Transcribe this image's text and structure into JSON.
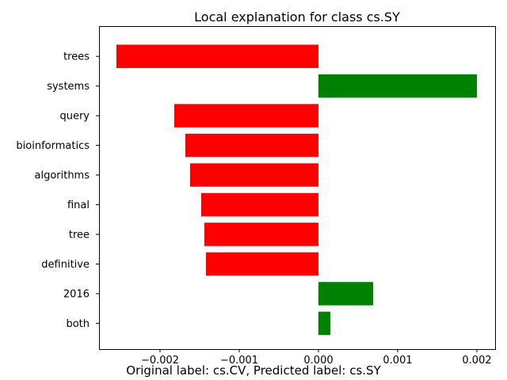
{
  "chart_data": {
    "type": "bar",
    "orientation": "horizontal",
    "title": "Local explanation for class cs.SY",
    "caption": "Original label: cs.CV, Predicted label: cs.SY",
    "xlabel": "",
    "ylabel": "",
    "categories": [
      "trees",
      "systems",
      "query",
      "bioinformatics",
      "algorithms",
      "final",
      "tree",
      "definitive",
      "2016",
      "both"
    ],
    "values": [
      -0.00255,
      0.002,
      -0.00182,
      -0.00168,
      -0.00162,
      -0.00148,
      -0.00144,
      -0.00142,
      0.00069,
      0.00015
    ],
    "xlim": [
      -0.00277,
      0.00223
    ],
    "xticks": [
      -0.002,
      -0.001,
      0.0,
      0.001,
      0.002
    ],
    "xtick_labels": [
      "−0.002",
      "−0.001",
      "0.000",
      "0.001",
      "0.002"
    ],
    "grid": false,
    "colors": {
      "positive": "#008000",
      "negative": "#ff0000"
    }
  }
}
